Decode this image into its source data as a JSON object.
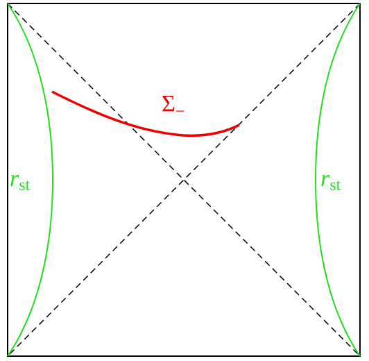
{
  "labels": [
    {
      "main": "Σ",
      "sub": "−"
    },
    {
      "main": "r",
      "sub": "st"
    },
    {
      "main": "r",
      "sub": "st"
    }
  ]
}
